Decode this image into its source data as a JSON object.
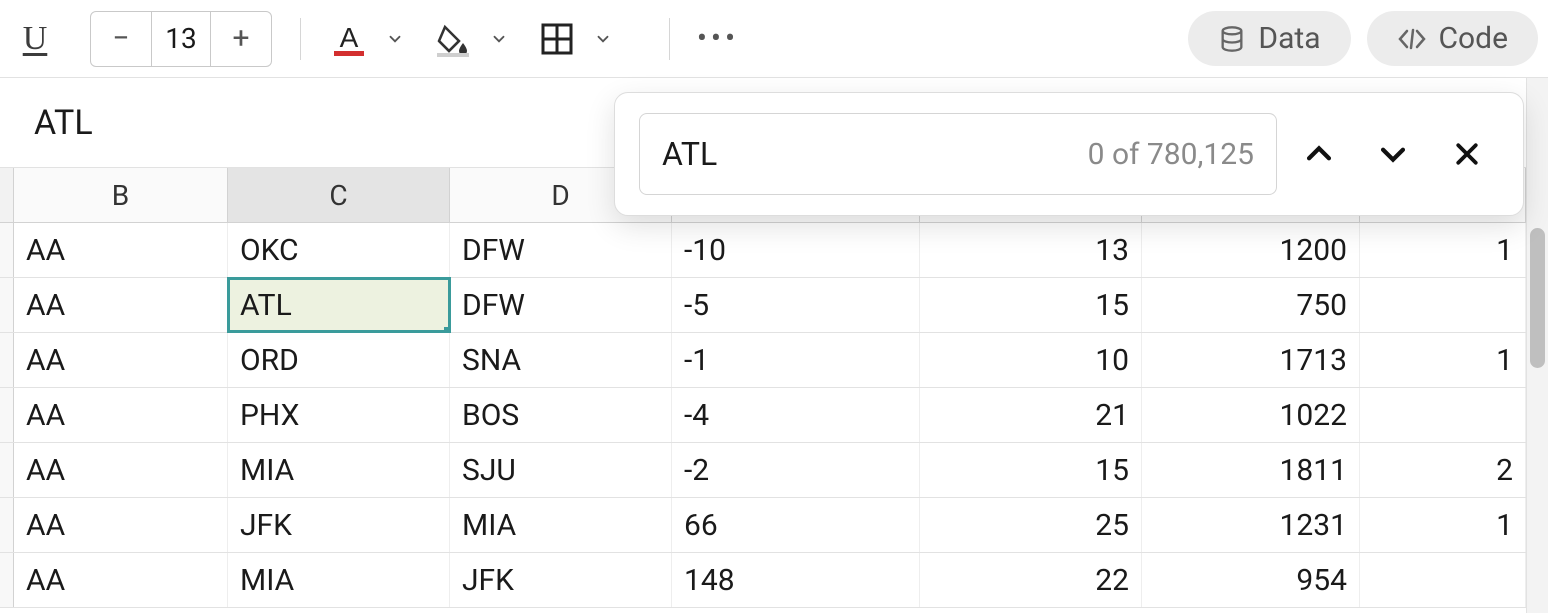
{
  "toolbar": {
    "font_size": "13",
    "decrease_label": "−",
    "increase_label": "+",
    "data_pill": "Data",
    "code_pill": "Code"
  },
  "formula_bar": {
    "value": "ATL"
  },
  "search": {
    "query": "ATL",
    "count_text": "0 of 780,125"
  },
  "columns": [
    "B",
    "C",
    "D"
  ],
  "col_widths": {
    "B": 214,
    "C": 222,
    "D": 222,
    "E": 248,
    "F": 222,
    "G": 218,
    "H": 166
  },
  "active_column": "C",
  "selected": {
    "row": 1,
    "col": "C"
  },
  "rows": [
    {
      "B": "AA",
      "C": "OKC",
      "D": "DFW",
      "E": "-10",
      "F": "13",
      "G": "1200",
      "H": "1"
    },
    {
      "B": "AA",
      "C": "ATL",
      "D": "DFW",
      "E": "-5",
      "F": "15",
      "G": "750",
      "H": ""
    },
    {
      "B": "AA",
      "C": "ORD",
      "D": "SNA",
      "E": "-1",
      "F": "10",
      "G": "1713",
      "H": "1"
    },
    {
      "B": "AA",
      "C": "PHX",
      "D": "BOS",
      "E": "-4",
      "F": "21",
      "G": "1022",
      "H": ""
    },
    {
      "B": "AA",
      "C": "MIA",
      "D": "SJU",
      "E": "-2",
      "F": "15",
      "G": "1811",
      "H": "2"
    },
    {
      "B": "AA",
      "C": "JFK",
      "D": "MIA",
      "E": "66",
      "F": "25",
      "G": "1231",
      "H": "1"
    },
    {
      "B": "AA",
      "C": "MIA",
      "D": "JFK",
      "E": "148",
      "F": "22",
      "G": "954",
      "H": ""
    }
  ],
  "colors": {
    "selection_border": "#3a9b9b",
    "selection_fill": "#edf2e0",
    "grid_border": "#e2e2e2",
    "header_bg": "#fafafa",
    "active_header_bg": "#e4e4e4",
    "pill_bg": "#ececec",
    "scrollbar_thumb": "#bfbfbf"
  }
}
